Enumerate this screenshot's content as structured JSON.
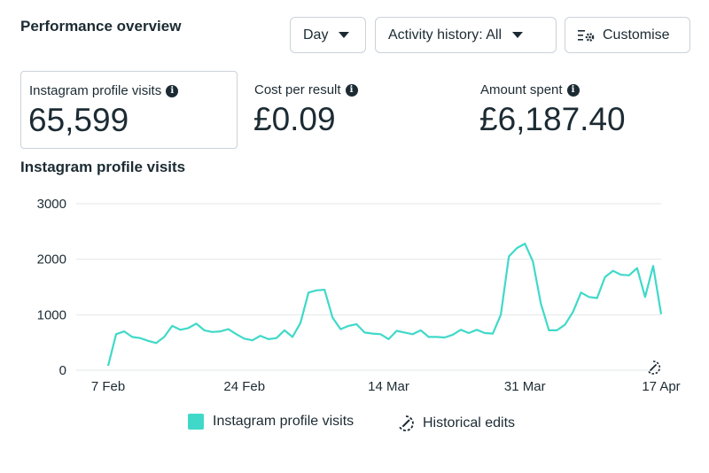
{
  "header": {
    "title": "Performance overview",
    "day_label": "Day",
    "activity_label": "Activity history: All",
    "customise_label": "Customise"
  },
  "metrics": [
    {
      "label": "Instagram profile visits",
      "value": "65,599",
      "selected": true
    },
    {
      "label": "Cost per result",
      "value": "£0.09",
      "selected": false
    },
    {
      "label": "Amount spent",
      "value": "£6,187.40",
      "selected": false
    }
  ],
  "chart_title": "Instagram profile visits",
  "legend": {
    "series_label": "Instagram profile visits",
    "edits_label": "Historical edits"
  },
  "colors": {
    "line": "#40d9c9",
    "grid": "#e2e6ea",
    "text": "#1c2b33"
  },
  "chart_data": {
    "type": "line",
    "ylim": [
      0,
      3000
    ],
    "yticks": [
      0,
      1000,
      2000,
      3000
    ],
    "xticks": [
      {
        "index": 1,
        "label": "7 Feb"
      },
      {
        "index": 18,
        "label": "24 Feb"
      },
      {
        "index": 36,
        "label": "14 Mar"
      },
      {
        "index": 53,
        "label": "31 Mar"
      },
      {
        "index": 70,
        "label": "17 Apr"
      }
    ],
    "historical_edit_index": 70,
    "series": [
      {
        "name": "Instagram profile visits",
        "values": [
          80,
          650,
          700,
          600,
          580,
          530,
          490,
          600,
          800,
          730,
          760,
          840,
          720,
          690,
          700,
          740,
          650,
          570,
          540,
          620,
          560,
          580,
          720,
          600,
          850,
          1400,
          1440,
          1450,
          950,
          740,
          800,
          830,
          680,
          660,
          650,
          560,
          710,
          680,
          650,
          720,
          600,
          600,
          590,
          640,
          730,
          670,
          730,
          670,
          660,
          1000,
          2050,
          2200,
          2280,
          1960,
          1200,
          720,
          720,
          820,
          1050,
          1400,
          1320,
          1300,
          1680,
          1790,
          1720,
          1710,
          1840,
          1320,
          1880,
          1010
        ]
      }
    ]
  }
}
